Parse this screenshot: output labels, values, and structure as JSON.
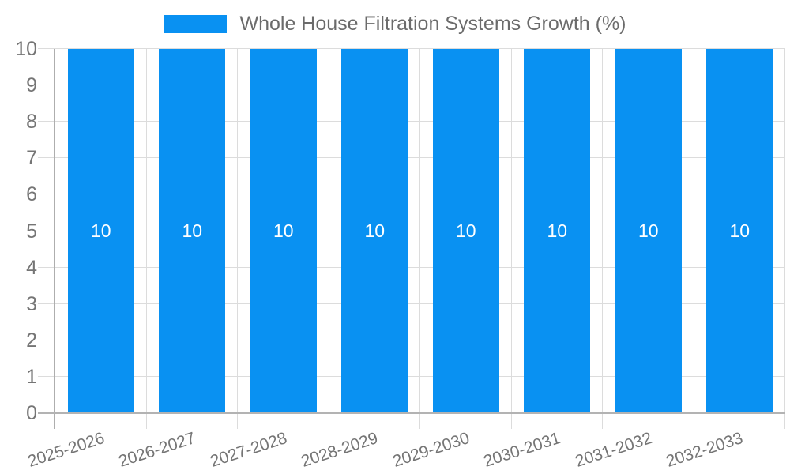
{
  "legend": {
    "position": "top-center",
    "items": [
      {
        "label": "Whole House Filtration Systems Growth (%)",
        "color": "#0991f2"
      }
    ]
  },
  "chart_data": {
    "type": "bar",
    "title": "Whole House Filtration Systems Growth (%)",
    "categories": [
      "2025-2026",
      "2026-2027",
      "2027-2028",
      "2028-2029",
      "2029-2030",
      "2030-2031",
      "2031-2032",
      "2032-2033"
    ],
    "values": [
      10,
      10,
      10,
      10,
      10,
      10,
      10,
      10
    ],
    "bar_labels": [
      "10",
      "10",
      "10",
      "10",
      "10",
      "10",
      "10",
      "10"
    ],
    "xlabel": "",
    "ylabel": "",
    "ylim": [
      0,
      10
    ],
    "yticks": [
      0,
      1,
      2,
      3,
      4,
      5,
      6,
      7,
      8,
      9,
      10
    ],
    "grid": true,
    "legend_position": "top-center",
    "x_tick_rotation_deg": -18
  },
  "colors": {
    "bar": "#0991f2",
    "bar_value_label": "#ffffff",
    "gridline": "#dcdcdc",
    "axis_line": "#b0b0b0",
    "tick_label": "#757575",
    "legend_text": "#6b6b6b",
    "background": "#ffffff"
  }
}
